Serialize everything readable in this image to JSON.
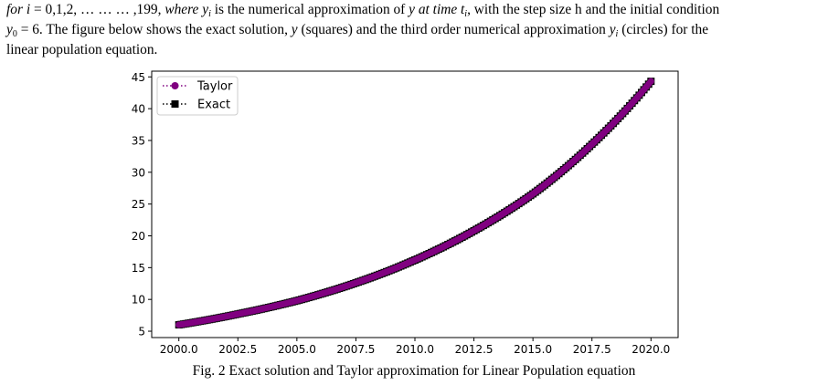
{
  "text": {
    "line1_a": "for",
    "line1_b": "i",
    "line1_c": "= 0,1,2, … … … ,199,",
    "line1_d": "where",
    "line1_e": "y",
    "line1_e_sub": "i",
    "line1_f": "is the numerical approximation of",
    "line1_g": "y at time t",
    "line1_g_sub": "i",
    "line1_h": ", with the  step size h and the initial condition",
    "line2_a": "y",
    "line2_a_sub": "0",
    "line2_b": "= 6. The figure below shows the exact solution,",
    "line2_c": "y",
    "line2_d": "(squares) and the third order numerical approximation",
    "line2_e": "y",
    "line2_e_sub": "i",
    "line2_f": "(circles) for the",
    "line3": "linear population equation.",
    "caption": "Fig. 2 Exact solution and Taylor approximation for Linear Population equation"
  },
  "colors": {
    "taylor": "#800080",
    "exact": "#000000"
  },
  "chart_data": {
    "type": "scatter",
    "title": "",
    "xlabel": "",
    "ylabel": "",
    "xlim": [
      1998.85,
      2021.15
    ],
    "ylim": [
      4.0,
      45.9
    ],
    "x_ticks": [
      2000.0,
      2002.5,
      2005.0,
      2007.5,
      2010.0,
      2012.5,
      2015.0,
      2017.5,
      2020.0
    ],
    "x_tick_labels": [
      "2000.0",
      "2002.5",
      "2005.0",
      "2007.5",
      "2010.0",
      "2012.5",
      "2015.0",
      "2017.5",
      "2020.0"
    ],
    "y_ticks": [
      5,
      10,
      15,
      20,
      25,
      30,
      35,
      40,
      45
    ],
    "y_tick_labels": [
      "5",
      "10",
      "15",
      "20",
      "25",
      "30",
      "35",
      "40",
      "45"
    ],
    "grid": false,
    "legend_position": "top-left",
    "series": [
      {
        "name": "Taylor",
        "marker": "circle",
        "linestyle": "dotted",
        "x": [
          2000.0,
          2002.5,
          2005.0,
          2007.5,
          2010.0,
          2012.5,
          2015.0,
          2017.5,
          2020.0
        ],
        "y": [
          6.0,
          7.7,
          9.8,
          12.6,
          16.2,
          20.8,
          26.6,
          34.4,
          44.3
        ]
      },
      {
        "name": "Exact",
        "marker": "square",
        "linestyle": "dotted",
        "x": [
          2000.0,
          2002.5,
          2005.0,
          2007.5,
          2010.0,
          2012.5,
          2015.0,
          2017.5,
          2020.0
        ],
        "y": [
          6.0,
          7.7,
          9.8,
          12.6,
          16.2,
          20.8,
          26.6,
          34.4,
          44.3
        ]
      }
    ]
  }
}
